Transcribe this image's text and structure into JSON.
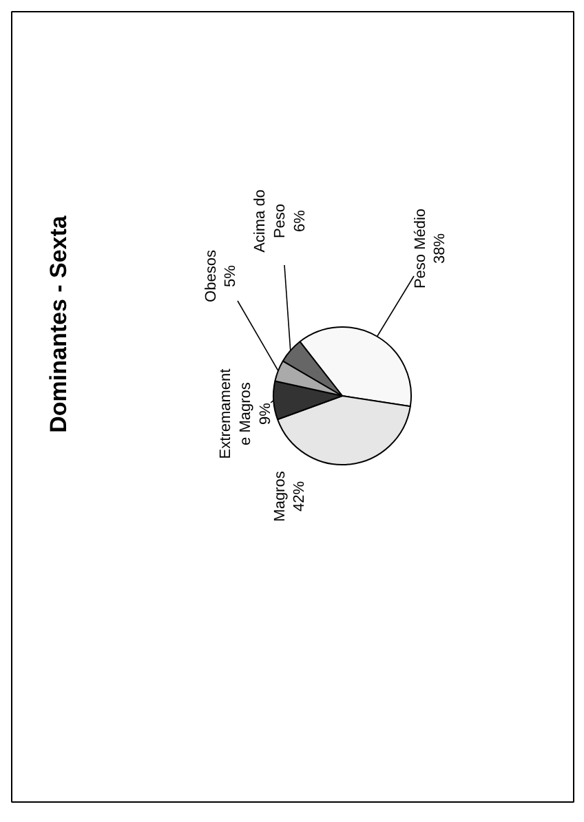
{
  "chart_data": {
    "type": "pie",
    "title": "Dominantes - Sexta",
    "categories": [
      "Peso Médio",
      "Magros",
      "Extremamente Magros",
      "Obesos",
      "Acima do Peso"
    ],
    "values": [
      38,
      42,
      9,
      5,
      6
    ],
    "colors": [
      "#f8f8f8",
      "#e6e6e6",
      "#333333",
      "#aaaaaa",
      "#666666"
    ],
    "data_labels": true,
    "value_labels": [
      "38%",
      "42%",
      "9%",
      "5%",
      "6%"
    ]
  }
}
